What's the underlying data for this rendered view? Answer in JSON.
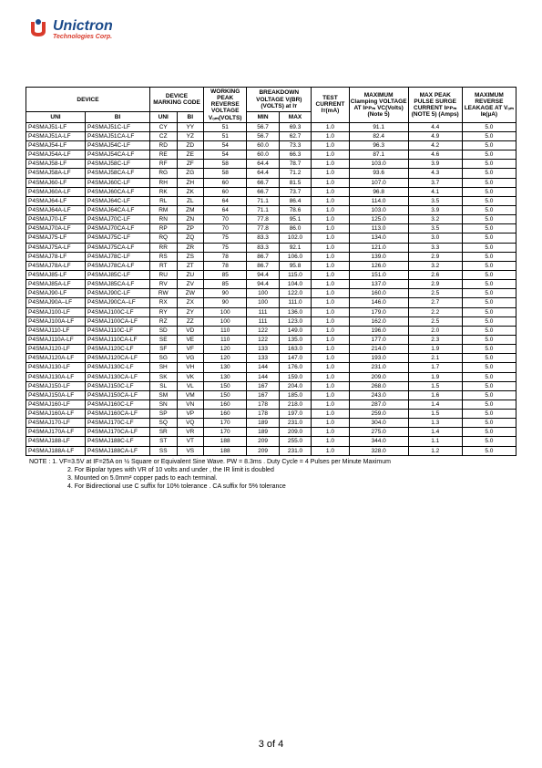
{
  "logo": {
    "name": "Unictron",
    "sub": "Technologies Corp.",
    "mark_color1": "#d93a2b",
    "mark_color2": "#1b4a8a"
  },
  "headers": {
    "device": "DEVICE",
    "marking": "DEVICE MARKING CODE",
    "working": "WORKING PEAK REVERSE VOLTAGE Vₒₘ(VOLTS)",
    "breakdown": "BREAKDOWN VOLTAGE V(BR) (VOLTS) at Iᴛ",
    "test": "TEST CURRENT Iᴛ(mA)",
    "clamp": "MAXIMUM Clamping VOLTAGE AT Iᴘᴘₘ VC(Volts) (Note 5)",
    "peak": "MAX PEAK PULSE SURGE CURRENT Iᴘᴘₘ (NOTE 5) (Amps)",
    "leakage": "MAXIMUM REVERSE LEAKAGE AT Vₒₘ Iʀ(µA)",
    "uni": "UNI",
    "bi": "BI",
    "min": "MIN",
    "max": "MAX"
  },
  "col_widths": [
    "11%",
    "12%",
    "5%",
    "5%",
    "8%",
    "6%",
    "6%",
    "7%",
    "11%",
    "10%",
    "10%"
  ],
  "rows": [
    [
      "P4SMAJ51-LF",
      "P4SMAJ51C-LF",
      "CY",
      "YY",
      "51",
      "56.7",
      "69.3",
      "1.0",
      "91.1",
      "4.4",
      "5.0"
    ],
    [
      "P4SMAJ51A-LF",
      "P4SMAJ51CA-LF",
      "CZ",
      "YZ",
      "51",
      "56.7",
      "62.7",
      "1.0",
      "82.4",
      "4.9",
      "5.0"
    ],
    [
      "P4SMAJ54-LF",
      "P4SMAJ54C-LF",
      "RD",
      "ZD",
      "54",
      "60.0",
      "73.3",
      "1.0",
      "96.3",
      "4.2",
      "5.0"
    ],
    [
      "P4SMAJ54A-LF",
      "P4SMAJ54CA-LF",
      "RE",
      "ZE",
      "54",
      "60.0",
      "66.3",
      "1.0",
      "87.1",
      "4.6",
      "5.0"
    ],
    [
      "P4SMAJ58-LF",
      "P4SMAJ58C-LF",
      "RF",
      "ZF",
      "58",
      "64.4",
      "78.7",
      "1.0",
      "103.0",
      "3.9",
      "5.0"
    ],
    [
      "P4SMAJ58A-LF",
      "P4SMAJ58CA-LF",
      "RG",
      "ZG",
      "58",
      "64.4",
      "71.2",
      "1.0",
      "93.6",
      "4.3",
      "5.0"
    ],
    [
      "P4SMAJ60-LF",
      "P4SMAJ60C-LF",
      "RH",
      "ZH",
      "60",
      "66.7",
      "81.5",
      "1.0",
      "107.0",
      "3.7",
      "5.0"
    ],
    [
      "P4SMAJ60A-LF",
      "P4SMAJ60CA-LF",
      "RK",
      "ZK",
      "60",
      "66.7",
      "73.7",
      "1.0",
      "96.8",
      "4.1",
      "5.0"
    ],
    [
      "P4SMAJ64-LF",
      "P4SMAJ64C-LF",
      "RL",
      "ZL",
      "64",
      "71.1",
      "86.4",
      "1.0",
      "114.0",
      "3.5",
      "5.0"
    ],
    [
      "P4SMAJ64A-LF",
      "P4SMAJ64CA-LF",
      "RM",
      "ZM",
      "64",
      "71.1",
      "78.6",
      "1.0",
      "103.0",
      "3.9",
      "5.0"
    ],
    [
      "P4SMAJ70-LF",
      "P4SMAJ70C-LF",
      "RN",
      "ZN",
      "70",
      "77.8",
      "95.1",
      "1.0",
      "125.0",
      "3.2",
      "5.0"
    ],
    [
      "P4SMAJ70A-LF",
      "P4SMAJ70CA-LF",
      "RP",
      "ZP",
      "70",
      "77.8",
      "86.0",
      "1.0",
      "113.0",
      "3.5",
      "5.0"
    ],
    [
      "P4SMAJ75-LF",
      "P4SMAJ75C-LF",
      "RQ",
      "ZQ",
      "75",
      "83.3",
      "102.0",
      "1.0",
      "134.0",
      "3.0",
      "5.0"
    ],
    [
      "P4SMAJ75A-LF",
      "P4SMAJ75CA-LF",
      "RR",
      "ZR",
      "75",
      "83.3",
      "92.1",
      "1.0",
      "121.0",
      "3.3",
      "5.0"
    ],
    [
      "P4SMAJ78-LF",
      "P4SMAJ78C-LF",
      "RS",
      "ZS",
      "78",
      "86.7",
      "106.0",
      "1.0",
      "139.0",
      "2.9",
      "5.0"
    ],
    [
      "P4SMAJ78A-LF",
      "P4SMAJ78CA-LF",
      "RT",
      "ZT",
      "78",
      "86.7",
      "95.8",
      "1.0",
      "126.0",
      "3.2",
      "5.0"
    ],
    [
      "P4SMAJ85-LF",
      "P4SMAJ85C-LF",
      "RU",
      "ZU",
      "85",
      "94.4",
      "115.0",
      "1.0",
      "151.0",
      "2.6",
      "5.0"
    ],
    [
      "P4SMAJ85A-LF",
      "P4SMAJ85CA-LF",
      "RV",
      "ZV",
      "85",
      "94.4",
      "104.0",
      "1.0",
      "137.0",
      "2.9",
      "5.0"
    ],
    [
      "P4SMAJ90-LF",
      "P4SMAJ90C-LF",
      "RW",
      "ZW",
      "90",
      "100",
      "122.0",
      "1.0",
      "160.0",
      "2.5",
      "5.0"
    ],
    [
      "P4SMAJ90A–LF",
      "P4SMAJ90CA–LF",
      "RX",
      "ZX",
      "90",
      "100",
      "111.0",
      "1.0",
      "146.0",
      "2.7",
      "5.0"
    ],
    [
      "P4SMAJ100-LF",
      "P4SMAJ100C-LF",
      "RY",
      "ZY",
      "100",
      "111",
      "136.0",
      "1.0",
      "179.0",
      "2.2",
      "5.0"
    ],
    [
      "P4SMAJ100A-LF",
      "P4SMAJ100CA-LF",
      "RZ",
      "ZZ",
      "100",
      "111",
      "123.0",
      "1.0",
      "162.0",
      "2.5",
      "5.0"
    ],
    [
      "P4SMAJ110-LF",
      "P4SMAJ110C-LF",
      "SD",
      "VD",
      "110",
      "122",
      "149.0",
      "1.0",
      "196.0",
      "2.0",
      "5.0"
    ],
    [
      "P4SMAJ110A-LF",
      "P4SMAJ110CA-LF",
      "SE",
      "VE",
      "110",
      "122",
      "135.0",
      "1.0",
      "177.0",
      "2.3",
      "5.0"
    ],
    [
      "P4SMAJ120-LF",
      "P4SMAJ120C-LF",
      "SF",
      "VF",
      "120",
      "133",
      "163.0",
      "1.0",
      "214.0",
      "1.9",
      "5.0"
    ],
    [
      "P4SMAJ120A-LF",
      "P4SMAJ120CA-LF",
      "SG",
      "VG",
      "120",
      "133",
      "147.0",
      "1.0",
      "193.0",
      "2.1",
      "5.0"
    ],
    [
      "P4SMAJ130-LF",
      "P4SMAJ130C-LF",
      "SH",
      "VH",
      "130",
      "144",
      "176.0",
      "1.0",
      "231.0",
      "1.7",
      "5.0"
    ],
    [
      "P4SMAJ130A-LF",
      "P4SMAJ130CA-LF",
      "SK",
      "VK",
      "130",
      "144",
      "159.0",
      "1.0",
      "209.0",
      "1.9",
      "5.0"
    ],
    [
      "P4SMAJ150-LF",
      "P4SMAJ150C-LF",
      "SL",
      "VL",
      "150",
      "167",
      "204.0",
      "1.0",
      "268.0",
      "1.5",
      "5.0"
    ],
    [
      "P4SMAJ150A-LF",
      "P4SMAJ150CA-LF",
      "SM",
      "VM",
      "150",
      "167",
      "185.0",
      "1.0",
      "243.0",
      "1.6",
      "5.0"
    ],
    [
      "P4SMAJ160-LF",
      "P4SMAJ160C-LF",
      "SN",
      "VN",
      "160",
      "178",
      "218.0",
      "1.0",
      "287.0",
      "1.4",
      "5.0"
    ],
    [
      "P4SMAJ160A-LF",
      "P4SMAJ160CA-LF",
      "SP",
      "VP",
      "160",
      "178",
      "197.0",
      "1.0",
      "259.0",
      "1.5",
      "5.0"
    ],
    [
      "P4SMAJ170-LF",
      "P4SMAJ170C-LF",
      "SQ",
      "VQ",
      "170",
      "189",
      "231.0",
      "1.0",
      "304.0",
      "1.3",
      "5.0"
    ],
    [
      "P4SMAJ170A-LF",
      "P4SMAJ170CA-LF",
      "SR",
      "VR",
      "170",
      "189",
      "209.0",
      "1.0",
      "275.0",
      "1.4",
      "5.0"
    ],
    [
      "P4SMAJ188-LF",
      "P4SMAJ188C-LF",
      "ST",
      "VT",
      "188",
      "209",
      "255.0",
      "1.0",
      "344.0",
      "1.1",
      "5.0"
    ],
    [
      "P4SMAJ188A-LF",
      "P4SMAJ188CA-LF",
      "SS",
      "VS",
      "188",
      "209",
      "231.0",
      "1.0",
      "328.0",
      "1.2",
      "5.0"
    ]
  ],
  "notes": [
    "NOTE :   1. VF=3.5V at IF=25A on ½ Square or Equivalent Sine Wave. PW = 8.3ms . Duty Cycle = 4 Pulses per Minute Maximum",
    "2. For Bipolar types with VR of 10 volts and under , the IR limit is doubled",
    "3. Mounted on 5.0mm² copper pads to each terminal.",
    "4. For Bidirectional use C suffix for 10%   tolerance . CA suffix for 5%   tolerance"
  ],
  "footer": "3 of 4"
}
